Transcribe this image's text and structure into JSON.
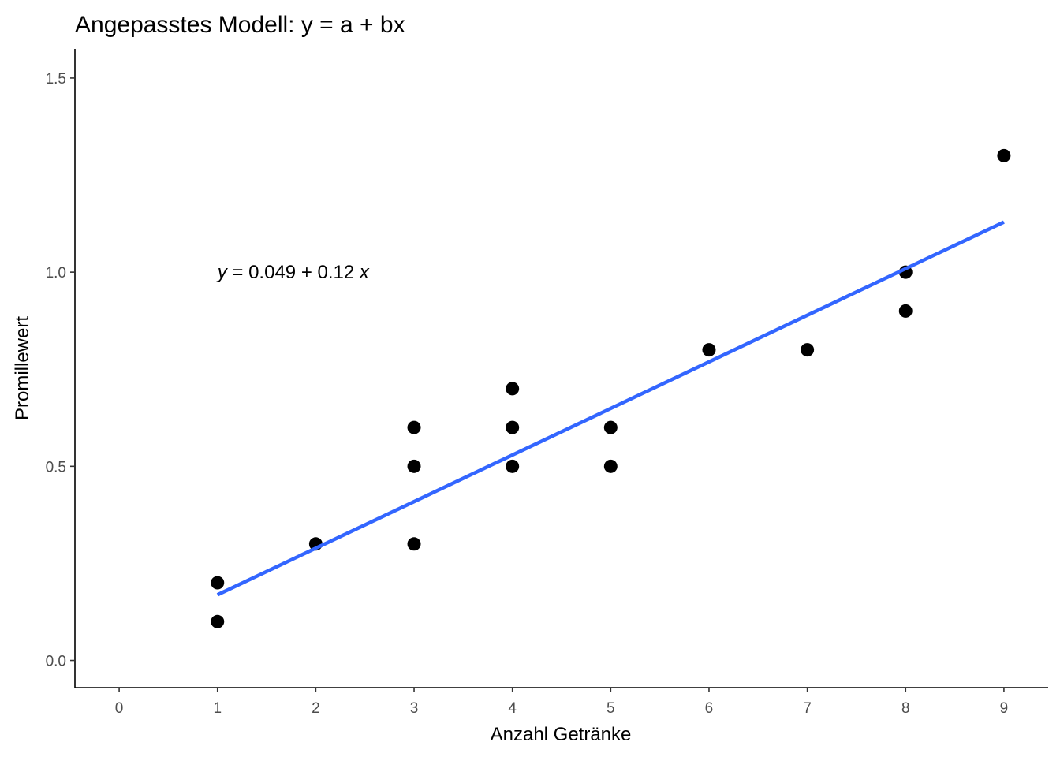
{
  "chart_data": {
    "type": "scatter",
    "title": "Angepasstes Modell: y = a + bx",
    "xlabel": "Anzahl Getränke",
    "ylabel": "Promillewert",
    "xlim": [
      -0.45,
      9.45
    ],
    "ylim": [
      -0.07,
      1.575
    ],
    "x_ticks": [
      0,
      1,
      2,
      3,
      4,
      5,
      6,
      7,
      8,
      9
    ],
    "y_ticks": [
      0.0,
      0.5,
      1.0,
      1.5
    ],
    "y_tick_labels": [
      "0.0",
      "0.5",
      "1.0",
      "1.5"
    ],
    "grid": false,
    "points": [
      {
        "x": 1,
        "y": 0.1
      },
      {
        "x": 1,
        "y": 0.2
      },
      {
        "x": 2,
        "y": 0.3
      },
      {
        "x": 3,
        "y": 0.3
      },
      {
        "x": 3,
        "y": 0.5
      },
      {
        "x": 3,
        "y": 0.6
      },
      {
        "x": 4,
        "y": 0.5
      },
      {
        "x": 4,
        "y": 0.6
      },
      {
        "x": 4,
        "y": 0.7
      },
      {
        "x": 5,
        "y": 0.5
      },
      {
        "x": 5,
        "y": 0.6
      },
      {
        "x": 6,
        "y": 0.8
      },
      {
        "x": 7,
        "y": 0.8
      },
      {
        "x": 8,
        "y": 0.9
      },
      {
        "x": 8,
        "y": 1.0
      },
      {
        "x": 9,
        "y": 1.3
      }
    ],
    "fit_line": {
      "intercept": 0.049,
      "slope": 0.12,
      "x_range": [
        1,
        9
      ],
      "color": "#3366ff"
    },
    "annotation": {
      "x": 1,
      "y": 1.0,
      "text_y": "y",
      "text_mid": " = 0.049 + 0.12 ",
      "text_x": "x"
    },
    "point_color": "#000000"
  }
}
